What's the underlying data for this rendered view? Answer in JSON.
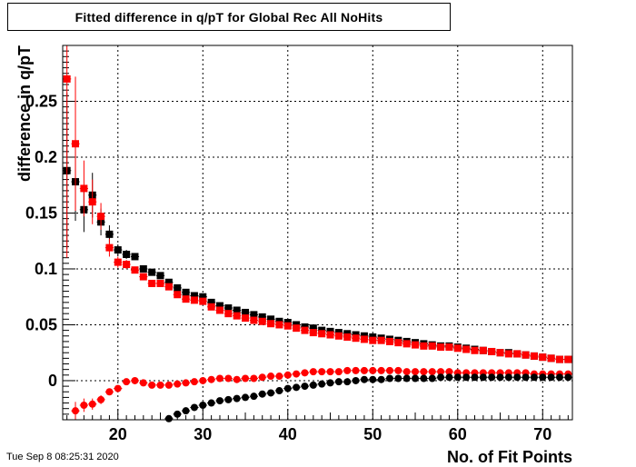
{
  "title": "Fitted difference in q/pT for Global Rec All NoHits",
  "timestamp": "Tue Sep  8 08:25:31 2020",
  "chart_data": {
    "type": "scatter",
    "title": "Fitted difference in q/pT for Global Rec All NoHits",
    "xlabel": "No. of Fit Points",
    "ylabel": "difference in q/pT",
    "xlim": [
      13.5,
      73.5
    ],
    "ylim": [
      -0.035,
      0.3
    ],
    "xticks": [
      20,
      30,
      40,
      50,
      60,
      70
    ],
    "yticks": [
      0,
      0.05,
      0.1,
      0.15,
      0.2,
      0.25
    ],
    "grid": true,
    "colors": {
      "black": "#000000",
      "red": "#ff0000"
    },
    "series": [
      {
        "marker": "square",
        "color": "#000000",
        "x": [
          14,
          15,
          16,
          17,
          18,
          19,
          20,
          21,
          22,
          23,
          24,
          25,
          26,
          27,
          28,
          29,
          30,
          31,
          32,
          33,
          34,
          35,
          36,
          37,
          38,
          39,
          40,
          41,
          42,
          43,
          44,
          45,
          46,
          47,
          48,
          49,
          50,
          51,
          52,
          53,
          54,
          55,
          56,
          57,
          58,
          59,
          60,
          61,
          62,
          63,
          64,
          65,
          66,
          67,
          68,
          69,
          70,
          71,
          72,
          73
        ],
        "y": [
          0.188,
          0.178,
          0.153,
          0.166,
          0.142,
          0.131,
          0.117,
          0.113,
          0.111,
          0.1,
          0.097,
          0.094,
          0.088,
          0.083,
          0.079,
          0.076,
          0.075,
          0.07,
          0.067,
          0.065,
          0.063,
          0.061,
          0.059,
          0.057,
          0.055,
          0.053,
          0.052,
          0.05,
          0.048,
          0.047,
          0.045,
          0.044,
          0.043,
          0.042,
          0.041,
          0.04,
          0.039,
          0.038,
          0.037,
          0.036,
          0.035,
          0.034,
          0.033,
          0.032,
          0.031,
          0.031,
          0.03,
          0.029,
          0.028,
          0.027,
          0.026,
          0.025,
          0.025,
          0.024,
          0.023,
          0.022,
          0.021,
          0.02,
          0.019,
          0.019
        ],
        "yerr": [
          0.07,
          0.035,
          0.02,
          0.02,
          0.012,
          0.008,
          0.005,
          0.004,
          0.003,
          0.003,
          0.002,
          0.002,
          0.002,
          0.002,
          0.001,
          0.001,
          0.001,
          0.001,
          0.001,
          0.001,
          0.001,
          0.001,
          0.001,
          0.001,
          0.001,
          0.001,
          0.001,
          0.001,
          0.001,
          0.001,
          0.001,
          0.001,
          0.001,
          0.001,
          0.001,
          0.001,
          0.001,
          0.001,
          0.001,
          0.001,
          0.001,
          0.001,
          0.001,
          0.001,
          0.001,
          0.001,
          0.001,
          0.001,
          0.001,
          0.001,
          0.001,
          0.001,
          0.001,
          0.001,
          0.001,
          0.001,
          0.001,
          0.001,
          0.001,
          0.001
        ]
      },
      {
        "marker": "square",
        "color": "#ff0000",
        "x": [
          14,
          15,
          16,
          17,
          18,
          19,
          20,
          21,
          22,
          23,
          24,
          25,
          26,
          27,
          28,
          29,
          30,
          31,
          32,
          33,
          34,
          35,
          36,
          37,
          38,
          39,
          40,
          41,
          42,
          43,
          44,
          45,
          46,
          47,
          48,
          49,
          50,
          51,
          52,
          53,
          54,
          55,
          56,
          57,
          58,
          59,
          60,
          61,
          62,
          63,
          64,
          65,
          66,
          67,
          68,
          69,
          70,
          71,
          72,
          73
        ],
        "y": [
          0.27,
          0.212,
          0.172,
          0.16,
          0.147,
          0.119,
          0.106,
          0.104,
          0.099,
          0.093,
          0.087,
          0.087,
          0.084,
          0.077,
          0.073,
          0.072,
          0.071,
          0.066,
          0.063,
          0.06,
          0.058,
          0.056,
          0.054,
          0.053,
          0.051,
          0.05,
          0.049,
          0.047,
          0.045,
          0.043,
          0.042,
          0.041,
          0.04,
          0.039,
          0.038,
          0.037,
          0.036,
          0.036,
          0.035,
          0.034,
          0.033,
          0.032,
          0.031,
          0.031,
          0.03,
          0.03,
          0.029,
          0.028,
          0.027,
          0.027,
          0.026,
          0.025,
          0.024,
          0.024,
          0.023,
          0.022,
          0.021,
          0.02,
          0.019,
          0.019
        ],
        "yerr": [
          0.16,
          0.06,
          0.025,
          0.02,
          0.012,
          0.008,
          0.005,
          0.004,
          0.003,
          0.003,
          0.002,
          0.002,
          0.002,
          0.002,
          0.001,
          0.001,
          0.001,
          0.001,
          0.001,
          0.001,
          0.001,
          0.001,
          0.001,
          0.001,
          0.001,
          0.001,
          0.001,
          0.001,
          0.001,
          0.001,
          0.001,
          0.001,
          0.001,
          0.001,
          0.001,
          0.001,
          0.001,
          0.001,
          0.001,
          0.001,
          0.001,
          0.001,
          0.001,
          0.001,
          0.001,
          0.001,
          0.001,
          0.001,
          0.001,
          0.001,
          0.001,
          0.001,
          0.001,
          0.001,
          0.001,
          0.001,
          0.001,
          0.001,
          0.001,
          0.001
        ]
      },
      {
        "marker": "circle",
        "color": "#ff0000",
        "x": [
          15,
          16,
          17,
          18,
          19,
          20,
          21,
          22,
          23,
          24,
          25,
          26,
          27,
          28,
          29,
          30,
          31,
          32,
          33,
          34,
          35,
          36,
          37,
          38,
          39,
          40,
          41,
          42,
          43,
          44,
          45,
          46,
          47,
          48,
          49,
          50,
          51,
          52,
          53,
          54,
          55,
          56,
          57,
          58,
          59,
          60,
          61,
          62,
          63,
          64,
          65,
          66,
          67,
          68,
          69,
          70,
          71,
          72,
          73
        ],
        "y": [
          -0.027,
          -0.022,
          -0.021,
          -0.017,
          -0.01,
          -0.007,
          -0.001,
          0,
          -0.002,
          -0.004,
          -0.004,
          -0.004,
          -0.003,
          -0.002,
          -0.001,
          0,
          0.001,
          0.002,
          0.002,
          0.001,
          0.002,
          0.002,
          0.003,
          0.004,
          0.004,
          0.005,
          0.006,
          0.007,
          0.008,
          0.008,
          0.008,
          0.008,
          0.009,
          0.009,
          0.009,
          0.009,
          0.009,
          0.009,
          0.009,
          0.008,
          0.008,
          0.008,
          0.008,
          0.008,
          0.008,
          0.007,
          0.007,
          0.007,
          0.007,
          0.007,
          0.007,
          0.007,
          0.007,
          0.007,
          0.006,
          0.006,
          0.006,
          0.006,
          0.006
        ],
        "yerr": [
          0.008,
          0.006,
          0.005,
          0.004,
          0.003,
          0.002,
          0.002,
          0.001,
          0.001,
          0.001,
          0.001,
          0.001,
          0.001,
          0.001,
          0.001,
          0.001,
          0.001,
          0.001,
          0.001,
          0.001,
          0.001,
          0.001,
          0.001,
          0.001,
          0.001,
          0.001,
          0.001,
          0.001,
          0.001,
          0.001,
          0.001,
          0.001,
          0.001,
          0.001,
          0.001,
          0.001,
          0.001,
          0.001,
          0.001,
          0.001,
          0.001,
          0.001,
          0.001,
          0.001,
          0.001,
          0.001,
          0.001,
          0.001,
          0.001,
          0.001,
          0.001,
          0.001,
          0.001,
          0.001,
          0.001,
          0.001,
          0.001,
          0.001,
          0.001
        ]
      },
      {
        "marker": "circle",
        "color": "#000000",
        "x": [
          26,
          27,
          28,
          29,
          30,
          31,
          32,
          33,
          34,
          35,
          36,
          37,
          38,
          39,
          40,
          41,
          42,
          43,
          44,
          45,
          46,
          47,
          48,
          49,
          50,
          51,
          52,
          53,
          54,
          55,
          56,
          57,
          58,
          59,
          60,
          61,
          62,
          63,
          64,
          65,
          66,
          67,
          68,
          69,
          70,
          71,
          72,
          73
        ],
        "y": [
          -0.034,
          -0.03,
          -0.027,
          -0.024,
          -0.022,
          -0.02,
          -0.018,
          -0.017,
          -0.016,
          -0.015,
          -0.014,
          -0.012,
          -0.011,
          -0.009,
          -0.007,
          -0.006,
          -0.005,
          -0.004,
          -0.003,
          -0.002,
          -0.001,
          -0.001,
          0,
          0.001,
          0.001,
          0.001,
          0.002,
          0.002,
          0.002,
          0.002,
          0.002,
          0.002,
          0.003,
          0.003,
          0.003,
          0.003,
          0.003,
          0.003,
          0.003,
          0.003,
          0.003,
          0.003,
          0.003,
          0.003,
          0.003,
          0.003,
          0.003,
          0.003
        ],
        "yerr": [
          0.002,
          0.002,
          0.002,
          0.002,
          0.001,
          0.001,
          0.001,
          0.001,
          0.001,
          0.001,
          0.001,
          0.001,
          0.001,
          0.001,
          0.001,
          0.001,
          0.001,
          0.001,
          0.001,
          0.001,
          0.001,
          0.001,
          0.001,
          0.001,
          0.001,
          0.001,
          0.001,
          0.001,
          0.001,
          0.001,
          0.001,
          0.001,
          0.001,
          0.001,
          0.001,
          0.001,
          0.001,
          0.001,
          0.001,
          0.001,
          0.001,
          0.001,
          0.001,
          0.001,
          0.001,
          0.001,
          0.001,
          0.001
        ]
      }
    ]
  }
}
